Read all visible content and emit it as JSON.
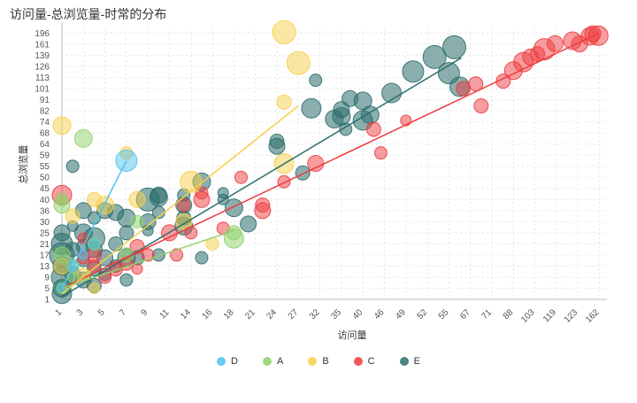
{
  "title": "访问量-总浏览量-时常的分布",
  "chart_data": {
    "type": "scatter",
    "title": "访问量-总浏览量-时常的分布",
    "xlabel": "访问量",
    "ylabel": "总浏览量",
    "x_ticks": [
      "1",
      "3",
      "5",
      "7",
      "9",
      "11",
      "14",
      "16",
      "18",
      "21",
      "24",
      "27",
      "32",
      "35",
      "40",
      "46",
      "49",
      "52",
      "55",
      "67",
      "71",
      "88",
      "103",
      "119",
      "123",
      "162"
    ],
    "y_ticks": [
      "1",
      "5",
      "9",
      "13",
      "17",
      "21",
      "25",
      "30",
      "36",
      "40",
      "45",
      "50",
      "55",
      "59",
      "64",
      "68",
      "74",
      "82",
      "91",
      "101",
      "113",
      "126",
      "139",
      "161",
      "196"
    ],
    "legend_position": "bottom",
    "grid": true,
    "colors": {
      "D": "#4ec3f0",
      "A": "#8fd16a",
      "B": "#f7cf4a",
      "C": "#ee3b3f",
      "E": "#2c6e6c"
    },
    "series": [
      {
        "name": "D",
        "points": [
          [
            1,
            5,
            5
          ],
          [
            2,
            13,
            6
          ],
          [
            3,
            17,
            5
          ],
          [
            4,
            21,
            6
          ],
          [
            7,
            57,
            12
          ]
        ],
        "trend": [
          [
            1,
            5
          ],
          [
            7,
            57
          ]
        ]
      },
      {
        "name": "A",
        "points": [
          [
            1,
            38,
            9
          ],
          [
            1,
            40,
            7
          ],
          [
            1,
            17,
            9
          ],
          [
            2,
            9,
            6
          ],
          [
            3,
            66,
            10
          ],
          [
            4,
            21,
            7
          ],
          [
            7,
            17,
            8
          ],
          [
            8,
            30,
            7
          ],
          [
            18,
            23,
            11
          ],
          [
            18,
            25,
            8
          ],
          [
            1,
            5,
            6
          ],
          [
            2,
            13,
            7
          ]
        ],
        "trend": [
          [
            1,
            5
          ],
          [
            18,
            26
          ]
        ]
      },
      {
        "name": "B",
        "points": [
          [
            1,
            72,
            10
          ],
          [
            2,
            33,
            8
          ],
          [
            4,
            40,
            8
          ],
          [
            5,
            38,
            10
          ],
          [
            7,
            60,
            7
          ],
          [
            8,
            40,
            9
          ],
          [
            13,
            30,
            9
          ],
          [
            14,
            48,
            12
          ],
          [
            16,
            21,
            7
          ],
          [
            25,
            199,
            13
          ],
          [
            25,
            89,
            8
          ],
          [
            25,
            56,
            11
          ],
          [
            27,
            130,
            13
          ],
          [
            1,
            13,
            9
          ],
          [
            3,
            10,
            7
          ],
          [
            4,
            5,
            6
          ]
        ],
        "trend": [
          [
            1,
            3
          ],
          [
            27,
            86
          ]
        ]
      },
      {
        "name": "C",
        "points": [
          [
            1,
            42,
            11
          ],
          [
            3,
            16,
            7
          ],
          [
            3,
            23,
            6
          ],
          [
            4,
            17,
            8
          ],
          [
            4,
            13,
            7
          ],
          [
            5,
            9,
            7
          ],
          [
            6,
            12,
            8
          ],
          [
            7,
            14,
            8
          ],
          [
            8,
            12,
            6
          ],
          [
            8,
            20,
            8
          ],
          [
            9,
            17,
            7
          ],
          [
            11,
            25,
            9
          ],
          [
            12,
            17,
            7
          ],
          [
            13,
            38,
            7
          ],
          [
            14,
            25,
            7
          ],
          [
            15,
            40,
            9
          ],
          [
            15,
            43,
            7
          ],
          [
            17,
            27,
            7
          ],
          [
            19,
            50,
            7
          ],
          [
            22,
            36,
            9
          ],
          [
            22,
            38,
            8
          ],
          [
            25,
            48,
            7
          ],
          [
            31,
            56,
            9
          ],
          [
            43,
            70,
            8
          ],
          [
            45,
            60,
            7
          ],
          [
            49,
            75,
            6
          ],
          [
            63,
            101,
            8
          ],
          [
            68,
            106,
            8
          ],
          [
            69,
            86,
            8
          ],
          [
            80,
            109,
            8
          ],
          [
            88,
            121,
            10
          ],
          [
            95,
            131,
            11
          ],
          [
            100,
            137,
            9
          ],
          [
            105,
            142,
            8
          ],
          [
            110,
            151,
            12
          ],
          [
            118,
            163,
            9
          ],
          [
            122,
            172,
            10
          ],
          [
            126,
            162,
            9
          ],
          [
            145,
            186,
            10
          ],
          [
            150,
            194,
            9
          ],
          [
            160,
            188,
            11
          ]
        ],
        "trend": [
          [
            1,
            5
          ],
          [
            160,
            195
          ]
        ]
      },
      {
        "name": "E",
        "points": [
          [
            1,
            5,
            10
          ],
          [
            1,
            9,
            12
          ],
          [
            1,
            13,
            10
          ],
          [
            1,
            17,
            14
          ],
          [
            1,
            21,
            12
          ],
          [
            1,
            25,
            9
          ],
          [
            1,
            3,
            11
          ],
          [
            2,
            55,
            7
          ],
          [
            2,
            28,
            6
          ],
          [
            2,
            19,
            8
          ],
          [
            2,
            10,
            9
          ],
          [
            3,
            36,
            9
          ],
          [
            3,
            25,
            10
          ],
          [
            3,
            20,
            8
          ],
          [
            3,
            15,
            7
          ],
          [
            3,
            8,
            9
          ],
          [
            4,
            32,
            7
          ],
          [
            4,
            23,
            12
          ],
          [
            4,
            19,
            9
          ],
          [
            4,
            12,
            8
          ],
          [
            4,
            6,
            8
          ],
          [
            5,
            36,
            9
          ],
          [
            5,
            16,
            9
          ],
          [
            5,
            10,
            7
          ],
          [
            6,
            35,
            9
          ],
          [
            6,
            21,
            8
          ],
          [
            6,
            13,
            7
          ],
          [
            7,
            32,
            10
          ],
          [
            7,
            25,
            8
          ],
          [
            7,
            16,
            10
          ],
          [
            7,
            8,
            7
          ],
          [
            8,
            16,
            8
          ],
          [
            9,
            40,
            13
          ],
          [
            9,
            30,
            9
          ],
          [
            9,
            26,
            6
          ],
          [
            10,
            42,
            9
          ],
          [
            10,
            41,
            10
          ],
          [
            10,
            35,
            7
          ],
          [
            10,
            17,
            7
          ],
          [
            13,
            42,
            7
          ],
          [
            13,
            38,
            9
          ],
          [
            13,
            32,
            8
          ],
          [
            13,
            28,
            10
          ],
          [
            15,
            48,
            10
          ],
          [
            15,
            16,
            7
          ],
          [
            17,
            43,
            6
          ],
          [
            17,
            40,
            6
          ],
          [
            18,
            37,
            10
          ],
          [
            20,
            29,
            9
          ],
          [
            24,
            63,
            9
          ],
          [
            24,
            65,
            8
          ],
          [
            28,
            52,
            8
          ],
          [
            30,
            84,
            11
          ],
          [
            31,
            110,
            7
          ],
          [
            34,
            76,
            10
          ],
          [
            35,
            83,
            9
          ],
          [
            35,
            78,
            10
          ],
          [
            36,
            70,
            7
          ],
          [
            37,
            92,
            9
          ],
          [
            40,
            75,
            11
          ],
          [
            40,
            90,
            10
          ],
          [
            42,
            79,
            10
          ],
          [
            47,
            97,
            11
          ],
          [
            50,
            120,
            12
          ],
          [
            53,
            137,
            13
          ],
          [
            55,
            118,
            12
          ],
          [
            58,
            155,
            13
          ],
          [
            61,
            103,
            11
          ]
        ],
        "trend": [
          [
            1,
            2
          ],
          [
            62,
            136
          ]
        ]
      }
    ]
  }
}
